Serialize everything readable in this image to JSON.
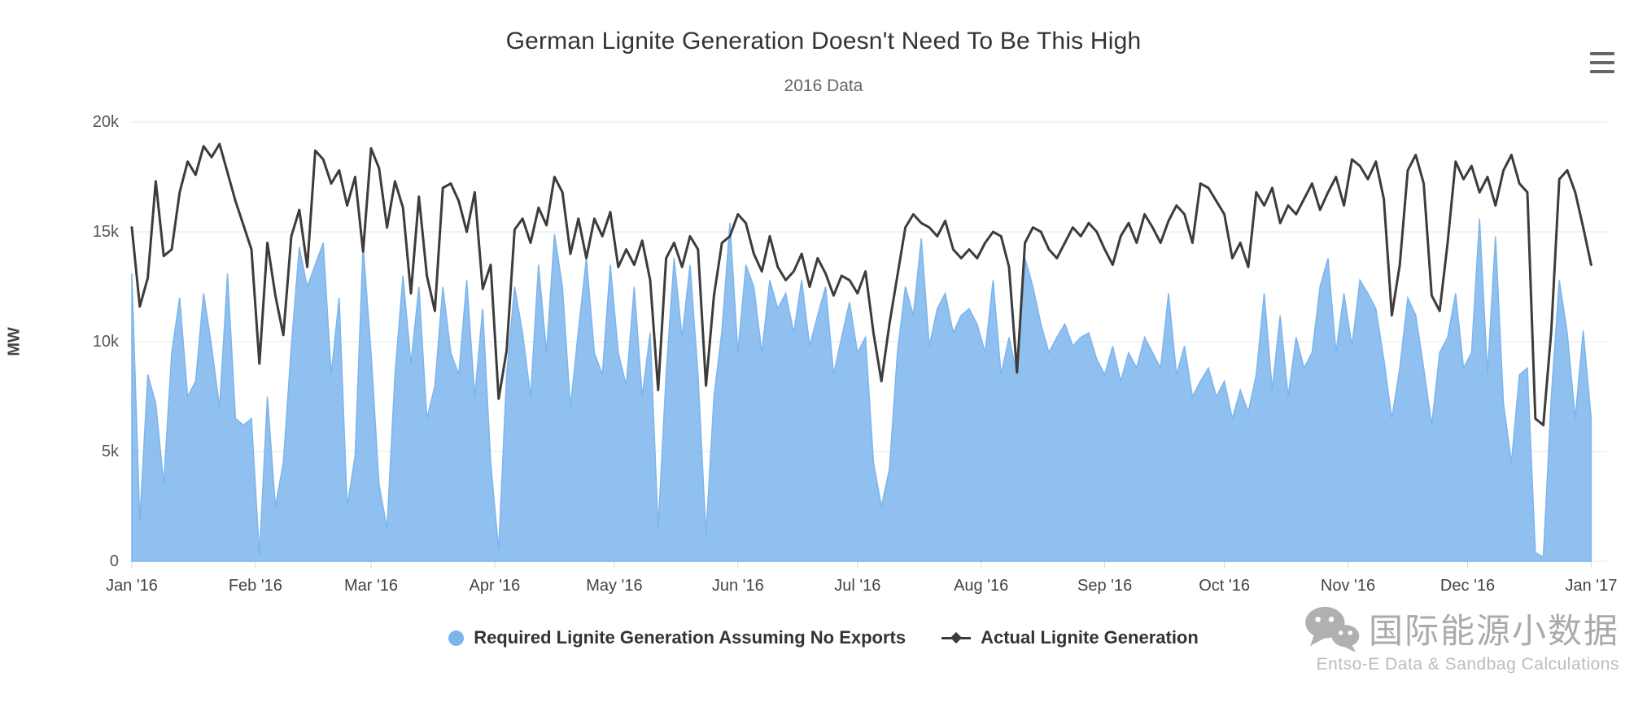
{
  "header": {
    "title": "German Lignite Generation Doesn't Need To Be This High",
    "subtitle": "2016 Data"
  },
  "menu": {
    "icon": "hamburger-icon"
  },
  "legend": {
    "items": [
      {
        "label": "Required Lignite Generation Assuming No Exports",
        "marker": "circle",
        "color": "#7cb5ec"
      },
      {
        "label": "Actual Lignite Generation",
        "marker": "diamond-line",
        "color": "#3c3c3c"
      }
    ]
  },
  "watermark": {
    "brand_text": "国际能源小数据",
    "sub_text": "Entso-E Data & Sandbag Calculations",
    "icon": "wechat-icon",
    "color": "#a6a6a6"
  },
  "chart_data": {
    "type": "area",
    "title": "German Lignite Generation Doesn't Need To Be This High",
    "subtitle": "2016 Data",
    "xlabel": "",
    "ylabel": "MW",
    "ylim": [
      0,
      20000
    ],
    "xlim_days": [
      0,
      370
    ],
    "x_step_days": 2,
    "grid": "horizontal",
    "legend_position": "bottom-center",
    "yticks": [
      {
        "v": 0,
        "label": "0"
      },
      {
        "v": 5000,
        "label": "5k"
      },
      {
        "v": 10000,
        "label": "10k"
      },
      {
        "v": 15000,
        "label": "15k"
      },
      {
        "v": 20000,
        "label": "20k"
      }
    ],
    "xticks": [
      {
        "day": 0,
        "label": "Jan '16"
      },
      {
        "day": 31,
        "label": "Feb '16"
      },
      {
        "day": 60,
        "label": "Mar '16"
      },
      {
        "day": 91,
        "label": "Apr '16"
      },
      {
        "day": 121,
        "label": "May '16"
      },
      {
        "day": 152,
        "label": "Jun '16"
      },
      {
        "day": 182,
        "label": "Jul '16"
      },
      {
        "day": 213,
        "label": "Aug '16"
      },
      {
        "day": 244,
        "label": "Sep '16"
      },
      {
        "day": 274,
        "label": "Oct '16"
      },
      {
        "day": 305,
        "label": "Nov '16"
      },
      {
        "day": 335,
        "label": "Dec '16"
      },
      {
        "day": 366,
        "label": "Jan '17"
      }
    ],
    "series": [
      {
        "name": "Required Lignite Generation Assuming No Exports",
        "type": "area",
        "color": "#7cb5ec",
        "values": [
          13100,
          1800,
          8500,
          7200,
          3500,
          9500,
          12000,
          7500,
          8200,
          12200,
          9800,
          7000,
          13100,
          6500,
          6200,
          6500,
          300,
          7500,
          2500,
          4500,
          9800,
          14300,
          12500,
          13500,
          14500,
          8500,
          12000,
          2500,
          4800,
          14400,
          9500,
          3500,
          1500,
          8500,
          13000,
          9000,
          12500,
          6500,
          8000,
          12500,
          9500,
          8500,
          12800,
          7500,
          11500,
          4500,
          500,
          8500,
          12500,
          10400,
          7500,
          13500,
          9500,
          14900,
          12500,
          7000,
          10500,
          13800,
          9500,
          8500,
          13500,
          9500,
          8000,
          12500,
          7500,
          10400,
          1500,
          8500,
          13800,
          10200,
          13500,
          8500,
          1200,
          7500,
          10500,
          15400,
          9500,
          13500,
          12500,
          9500,
          12800,
          11500,
          12200,
          10400,
          12800,
          9800,
          11200,
          12500,
          8500,
          10200,
          11800,
          9500,
          10200,
          4500,
          2500,
          4200,
          9500,
          12500,
          11200,
          14700,
          9800,
          11500,
          12200,
          10400,
          11200,
          11500,
          10800,
          9500,
          12800,
          8500,
          10200,
          8500,
          13800,
          12500,
          10800,
          9500,
          10200,
          10800,
          9800,
          10200,
          10400,
          9200,
          8500,
          9800,
          8200,
          9500,
          8800,
          10200,
          9500,
          8800,
          12200,
          8500,
          9800,
          7500,
          8200,
          8800,
          7500,
          8200,
          6500,
          7800,
          6800,
          8500,
          12200,
          7800,
          11200,
          7500,
          10200,
          8800,
          9500,
          12500,
          13800,
          9500,
          12200,
          9800,
          12800,
          12200,
          11500,
          9200,
          6500,
          8800,
          12000,
          11200,
          8800,
          6200,
          9500,
          10200,
          12200,
          8800,
          9500,
          15600,
          8500,
          14800,
          7200,
          4500,
          8500,
          8800,
          400,
          200,
          7500,
          12800,
          10400,
          6500,
          10500,
          6500
        ]
      },
      {
        "name": "Actual Lignite Generation",
        "type": "line",
        "color": "#3c3c3c",
        "values": [
          15200,
          11600,
          12900,
          17300,
          13900,
          14200,
          16800,
          18200,
          17600,
          18900,
          18400,
          19000,
          17700,
          16400,
          15300,
          14200,
          9000,
          14500,
          12100,
          10300,
          14800,
          16000,
          13400,
          18700,
          18300,
          17200,
          17800,
          16200,
          17500,
          14100,
          18800,
          17900,
          15200,
          17300,
          16100,
          12200,
          16600,
          13000,
          11400,
          17000,
          17200,
          16400,
          15000,
          16800,
          12400,
          13500,
          7400,
          9600,
          15100,
          15600,
          14500,
          16100,
          15300,
          17500,
          16800,
          14000,
          15600,
          13800,
          15600,
          14800,
          15900,
          13400,
          14200,
          13500,
          14600,
          12800,
          7800,
          13800,
          14500,
          13400,
          14800,
          14200,
          8000,
          12100,
          14500,
          14800,
          15800,
          15400,
          14000,
          13200,
          14800,
          13400,
          12800,
          13200,
          14000,
          12500,
          13800,
          13100,
          12100,
          13000,
          12800,
          12200,
          13200,
          10400,
          8200,
          10800,
          13000,
          15200,
          15800,
          15400,
          15200,
          14800,
          15500,
          14200,
          13800,
          14200,
          13800,
          14500,
          15000,
          14800,
          13400,
          8600,
          14500,
          15200,
          15000,
          14200,
          13800,
          14500,
          15200,
          14800,
          15400,
          15000,
          14200,
          13500,
          14800,
          15400,
          14500,
          15800,
          15200,
          14500,
          15500,
          16200,
          15800,
          14500,
          17200,
          17000,
          16400,
          15800,
          13800,
          14500,
          13400,
          16800,
          16200,
          17000,
          15400,
          16200,
          15800,
          16500,
          17200,
          16000,
          16800,
          17500,
          16200,
          18300,
          18000,
          17400,
          18200,
          16500,
          11200,
          13500,
          17800,
          18500,
          17200,
          12100,
          11400,
          14500,
          18200,
          17400,
          18000,
          16800,
          17500,
          16200,
          17800,
          18500,
          17200,
          16800,
          6500,
          6200,
          10500,
          17400,
          17800,
          16800,
          15200,
          13500
        ]
      }
    ]
  }
}
